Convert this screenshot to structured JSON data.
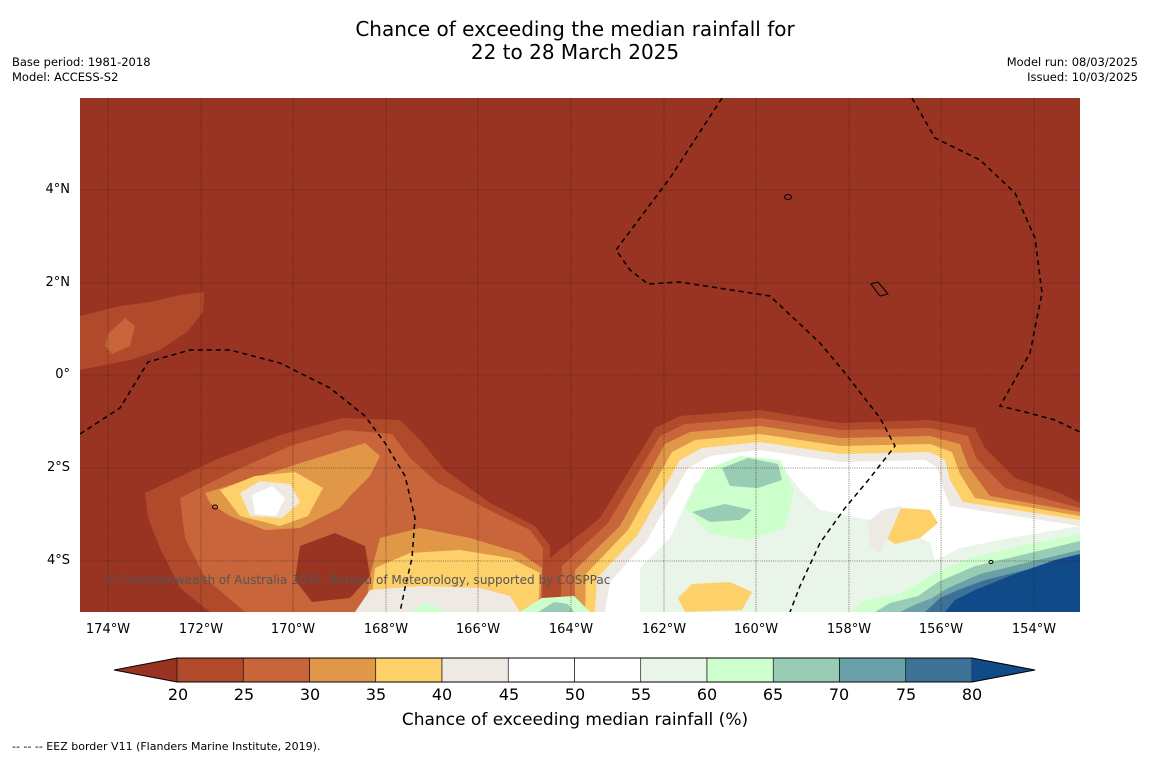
{
  "header": {
    "title_line1": "Chance of exceeding the median rainfall for",
    "title_line2": "22 to 28 March 2025",
    "base_period": "Base period: 1981-2018",
    "model": "Model: ACCESS-S2",
    "model_run": "Model run: 08/03/2025",
    "issued": "Issued: 10/03/2025"
  },
  "map": {
    "lat_ticks": [
      "4°N",
      "2°N",
      "0°",
      "2°S",
      "4°S"
    ],
    "lon_ticks": [
      "174°W",
      "172°W",
      "170°W",
      "168°W",
      "166°W",
      "164°W",
      "162°W",
      "160°W",
      "158°W",
      "156°W",
      "154°W"
    ],
    "copyright": "© Commonwealth of Australia 2025, Bureau of Meteorology, supported by COSPPac"
  },
  "legend": {
    "ticks": [
      "20",
      "25",
      "30",
      "35",
      "40",
      "45",
      "50",
      "55",
      "60",
      "65",
      "70",
      "75",
      "80"
    ],
    "colors": [
      "#993322",
      "#b04a2a",
      "#c8653a",
      "#e09848",
      "#fdd06a",
      "#efe9e4",
      "#ffffff",
      "#ffffff",
      "#e8f5e8",
      "#ccffcc",
      "#99ccb4",
      "#6aa0a8",
      "#3d7296",
      "#114a88"
    ],
    "label": "Chance of exceeding median rainfall (%)"
  },
  "footnote": "--  --  -- EEZ border V11 (Flanders Marine Institute, 2019)."
}
